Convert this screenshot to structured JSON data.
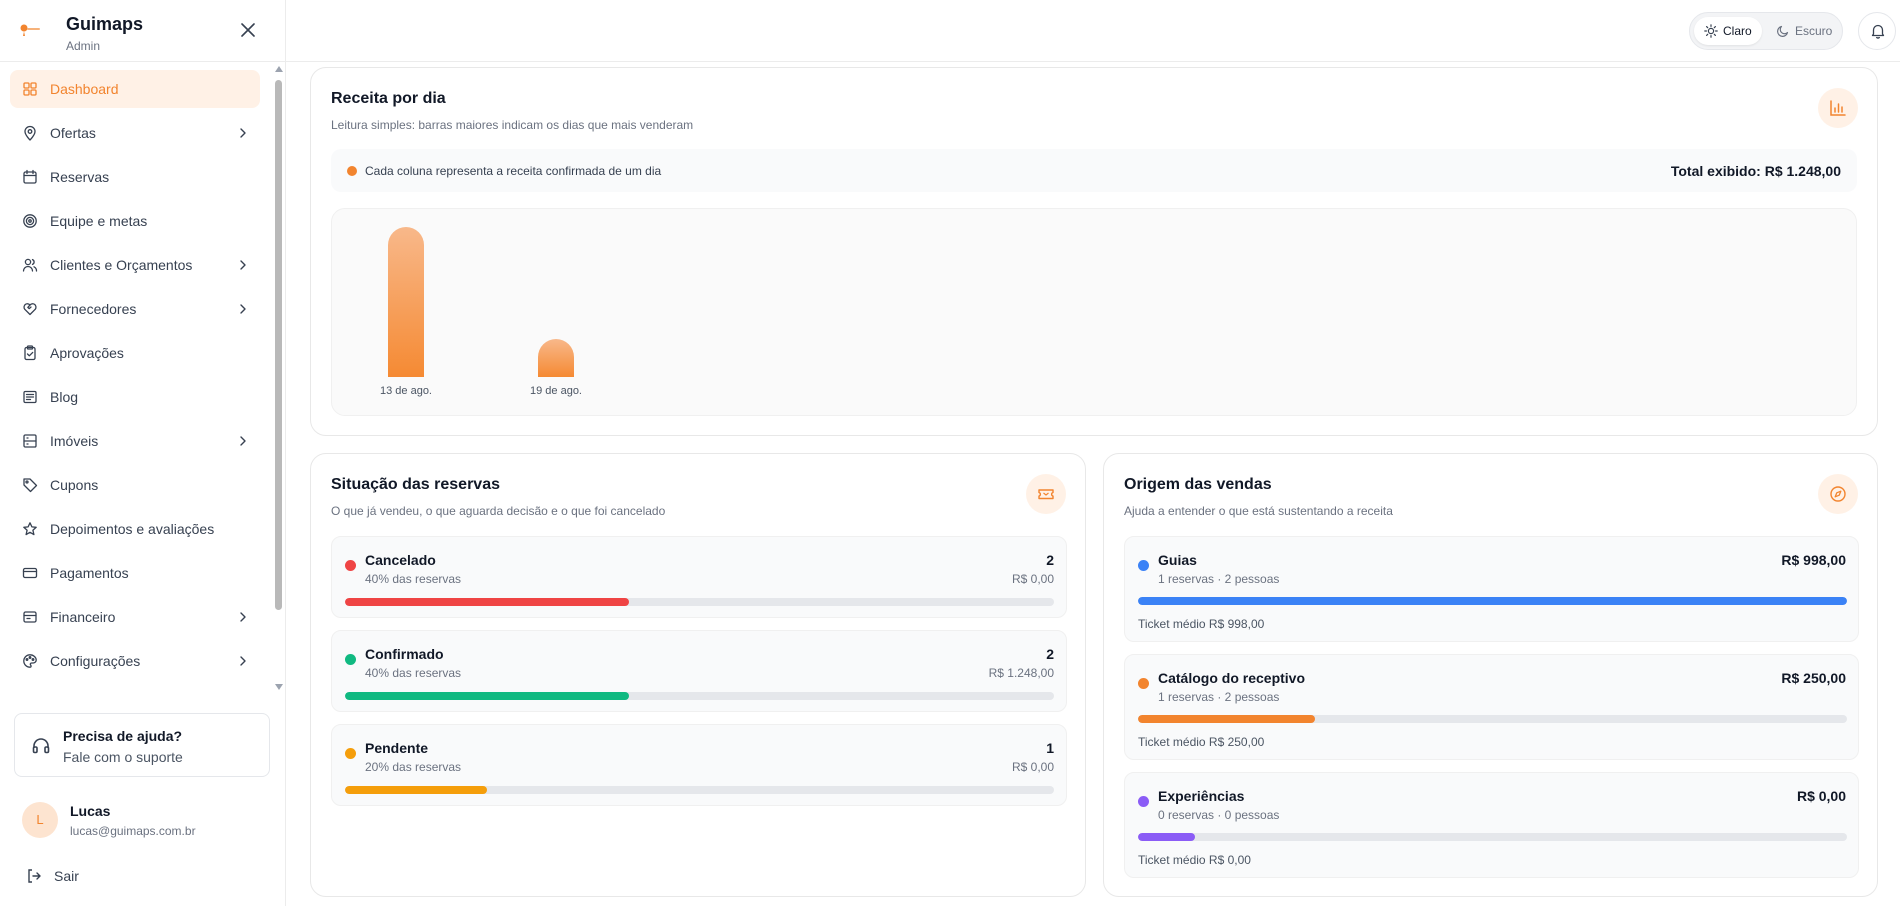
{
  "brand": {
    "name": "Guimaps",
    "role": "Admin"
  },
  "nav": {
    "items": [
      {
        "label": "Dashboard",
        "icon": "dashboard-icon",
        "active": true,
        "has_submenu": false
      },
      {
        "label": "Ofertas",
        "icon": "map-pin-icon",
        "active": false,
        "has_submenu": true
      },
      {
        "label": "Reservas",
        "icon": "calendar-icon",
        "active": false,
        "has_submenu": false
      },
      {
        "label": "Equipe e metas",
        "icon": "target-icon",
        "active": false,
        "has_submenu": false
      },
      {
        "label": "Clientes e Orçamentos",
        "icon": "users-icon",
        "active": false,
        "has_submenu": true
      },
      {
        "label": "Fornecedores",
        "icon": "handshake-icon",
        "active": false,
        "has_submenu": true
      },
      {
        "label": "Aprovações",
        "icon": "clipboard-check-icon",
        "active": false,
        "has_submenu": false
      },
      {
        "label": "Blog",
        "icon": "newspaper-icon",
        "active": false,
        "has_submenu": false
      },
      {
        "label": "Imóveis",
        "icon": "building-icon",
        "active": false,
        "has_submenu": true
      },
      {
        "label": "Cupons",
        "icon": "tag-icon",
        "active": false,
        "has_submenu": false
      },
      {
        "label": "Depoimentos e avaliações",
        "icon": "star-icon",
        "active": false,
        "has_submenu": false
      },
      {
        "label": "Pagamentos",
        "icon": "credit-card-icon",
        "active": false,
        "has_submenu": false
      },
      {
        "label": "Financeiro",
        "icon": "receipt-icon",
        "active": false,
        "has_submenu": true
      },
      {
        "label": "Configurações",
        "icon": "palette-icon",
        "active": false,
        "has_submenu": true
      }
    ]
  },
  "help": {
    "title": "Precisa de ajuda?",
    "subtitle": "Fale com o suporte"
  },
  "user": {
    "initial": "L",
    "name": "Lucas",
    "email": "lucas@guimaps.com.br"
  },
  "logout_label": "Sair",
  "theme": {
    "light_label": "Claro",
    "dark_label": "Escuro",
    "selected": "Claro"
  },
  "revenue": {
    "title": "Receita por dia",
    "subtitle": "Leitura simples: barras maiores indicam os dias que mais venderam",
    "legend_text": "Cada coluna representa a receita confirmada de um dia",
    "total_text": "Total exibido: R$ 1.248,00"
  },
  "chart_data": {
    "type": "bar",
    "categories": [
      "13 de ago.",
      "19 de ago."
    ],
    "values": [
      998,
      250
    ],
    "title": "Receita por dia",
    "xlabel": "",
    "ylabel": "",
    "grid": false
  },
  "status": {
    "title": "Situação das reservas",
    "subtitle": "O que já vendeu, o que aguarda decisão e o que foi cancelado",
    "rows": [
      {
        "name": "Cancelado",
        "pct_text": "40% das reservas",
        "count": "2",
        "value": "R$ 0,00",
        "fraction": 0.4,
        "color": "#ef4444"
      },
      {
        "name": "Confirmado",
        "pct_text": "40% das reservas",
        "count": "2",
        "value": "R$ 1.248,00",
        "fraction": 0.4,
        "color": "#10b981"
      },
      {
        "name": "Pendente",
        "pct_text": "20% das reservas",
        "count": "1",
        "value": "R$ 0,00",
        "fraction": 0.2,
        "color": "#f59e0b"
      }
    ]
  },
  "origin": {
    "title": "Origem das vendas",
    "subtitle": "Ajuda a entender o que está sustentando a receita",
    "rows": [
      {
        "name": "Guias",
        "detail": "1 reservas · 2 pessoas",
        "amount": "R$ 998,00",
        "ticket": "Ticket médio R$ 998,00",
        "fraction": 1.0,
        "color": "#3b82f6"
      },
      {
        "name": "Catálogo do receptivo",
        "detail": "1 reservas · 2 pessoas",
        "amount": "R$ 250,00",
        "ticket": "Ticket médio R$ 250,00",
        "fraction": 0.25,
        "color": "#f2842e"
      },
      {
        "name": "Experiências",
        "detail": "0 reservas · 0 pessoas",
        "amount": "R$ 0,00",
        "ticket": "Ticket médio R$ 0,00",
        "fraction": 0.08,
        "color": "#8b5cf6"
      }
    ]
  },
  "colors": {
    "accent": "#f2842e",
    "accent_light": "#fff1e6"
  }
}
